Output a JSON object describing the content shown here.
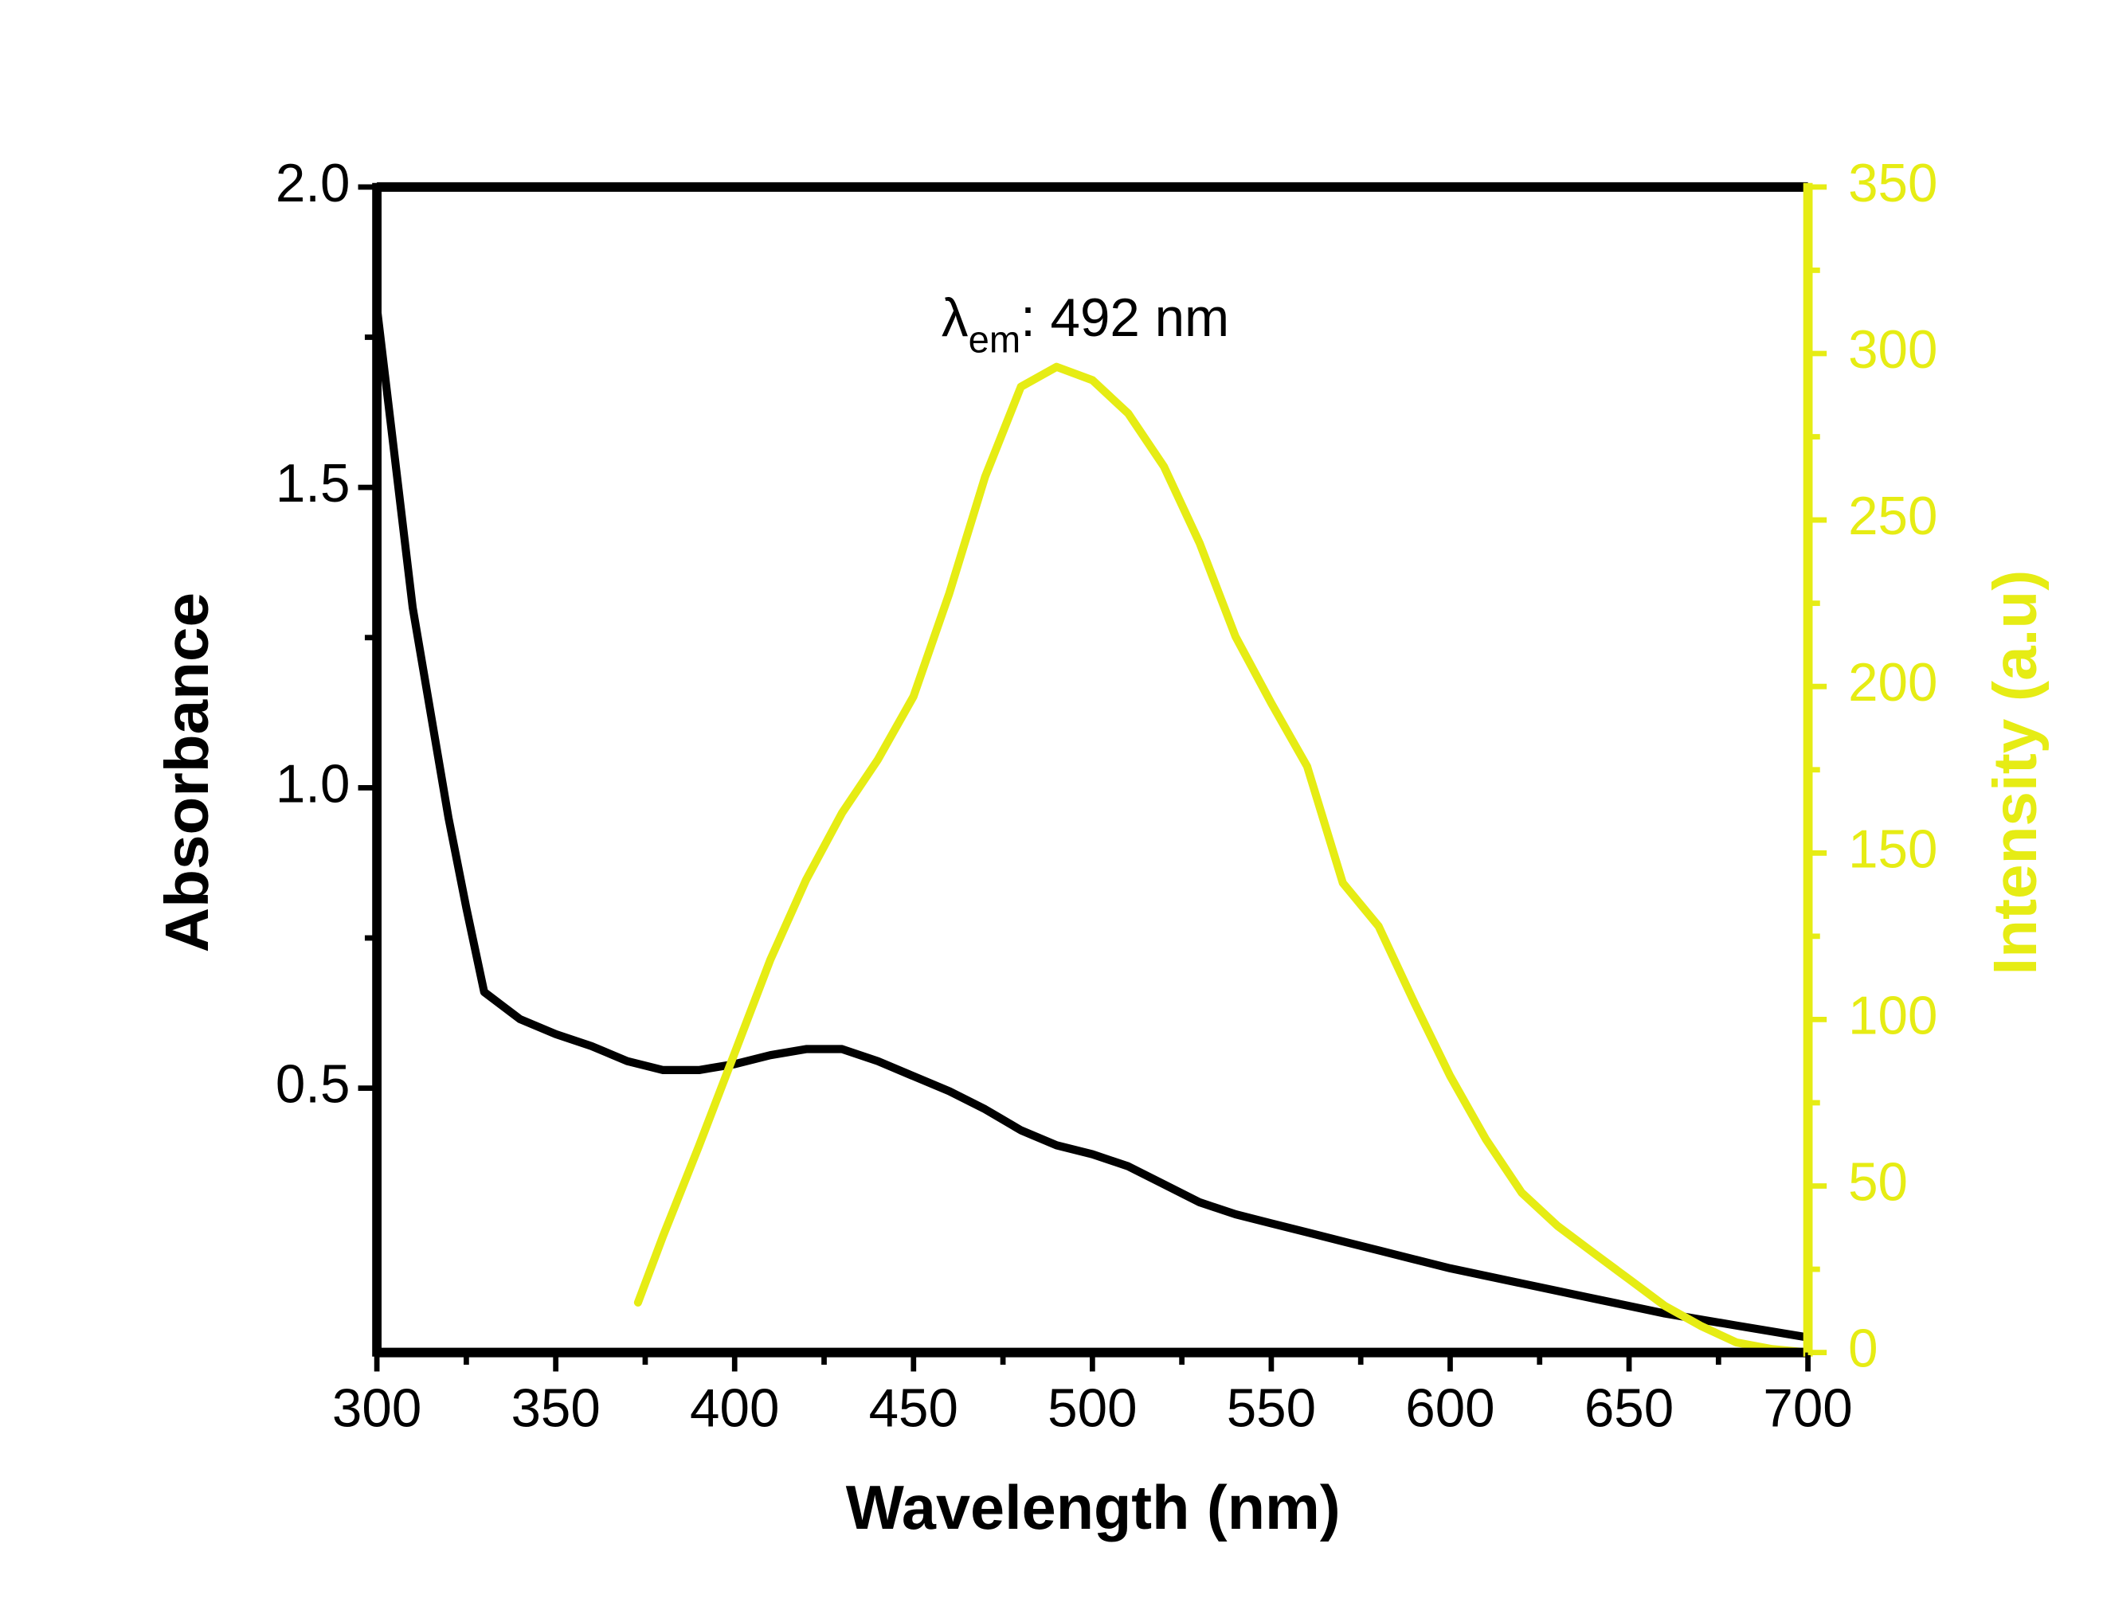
{
  "chart_data": {
    "type": "line",
    "x_label": "Wavelength (nm)",
    "y_label": "Absorbance",
    "y2_label": "Intensity (a.u)",
    "annotation": {
      "symbol": "λ",
      "subscript": "em",
      "text": ": 492 nm"
    },
    "xlim": [
      300,
      700
    ],
    "xticks": [
      300,
      350,
      400,
      450,
      500,
      550,
      600,
      650,
      700
    ],
    "ylim": [
      0.06,
      2.0
    ],
    "yticks": [
      0.5,
      {
        "value": 1.0,
        "label": "1.0"
      },
      1.5,
      {
        "value": 2.0,
        "label": "2.0"
      }
    ],
    "y2lim": [
      0,
      350
    ],
    "y2ticks": [
      0,
      50,
      100,
      150,
      200,
      250,
      300,
      350
    ],
    "y2_color": "#e6ec14",
    "series": [
      {
        "color": "#000000",
        "x": [
          300,
          310,
          320,
          325,
          330,
          340,
          350,
          360,
          370,
          380,
          390,
          400,
          410,
          420,
          430,
          440,
          450,
          460,
          470,
          480,
          490,
          500,
          510,
          520,
          530,
          540,
          550,
          560,
          570,
          580,
          590,
          600,
          620,
          640,
          660,
          680,
          700
        ],
        "values": [
          1.8,
          1.3,
          0.95,
          0.8,
          0.66,
          0.615,
          0.59,
          0.57,
          0.545,
          0.53,
          0.53,
          0.54,
          0.555,
          0.565,
          0.565,
          0.545,
          0.52,
          0.495,
          0.465,
          0.43,
          0.405,
          0.39,
          0.37,
          0.34,
          0.31,
          0.29,
          0.275,
          0.26,
          0.245,
          0.23,
          0.215,
          0.2,
          0.175,
          0.15,
          0.125,
          0.105,
          0.085
        ]
      },
      {
        "color": "#e6ec14",
        "axis": "y2",
        "x": [
          373,
          380,
          390,
          400,
          410,
          420,
          430,
          440,
          450,
          460,
          470,
          480,
          490,
          500,
          510,
          520,
          530,
          540,
          550,
          560,
          570,
          580,
          590,
          600,
          610,
          620,
          630,
          640,
          650,
          660,
          670,
          680,
          690,
          700
        ],
        "values": [
          15,
          35,
          62,
          90,
          118,
          142,
          162,
          178,
          197,
          228,
          263,
          290,
          296,
          292,
          282,
          266,
          243,
          215,
          195,
          176,
          141,
          128,
          105,
          83,
          64,
          48,
          38,
          30,
          22,
          14,
          8,
          3,
          1,
          0
        ]
      }
    ]
  }
}
